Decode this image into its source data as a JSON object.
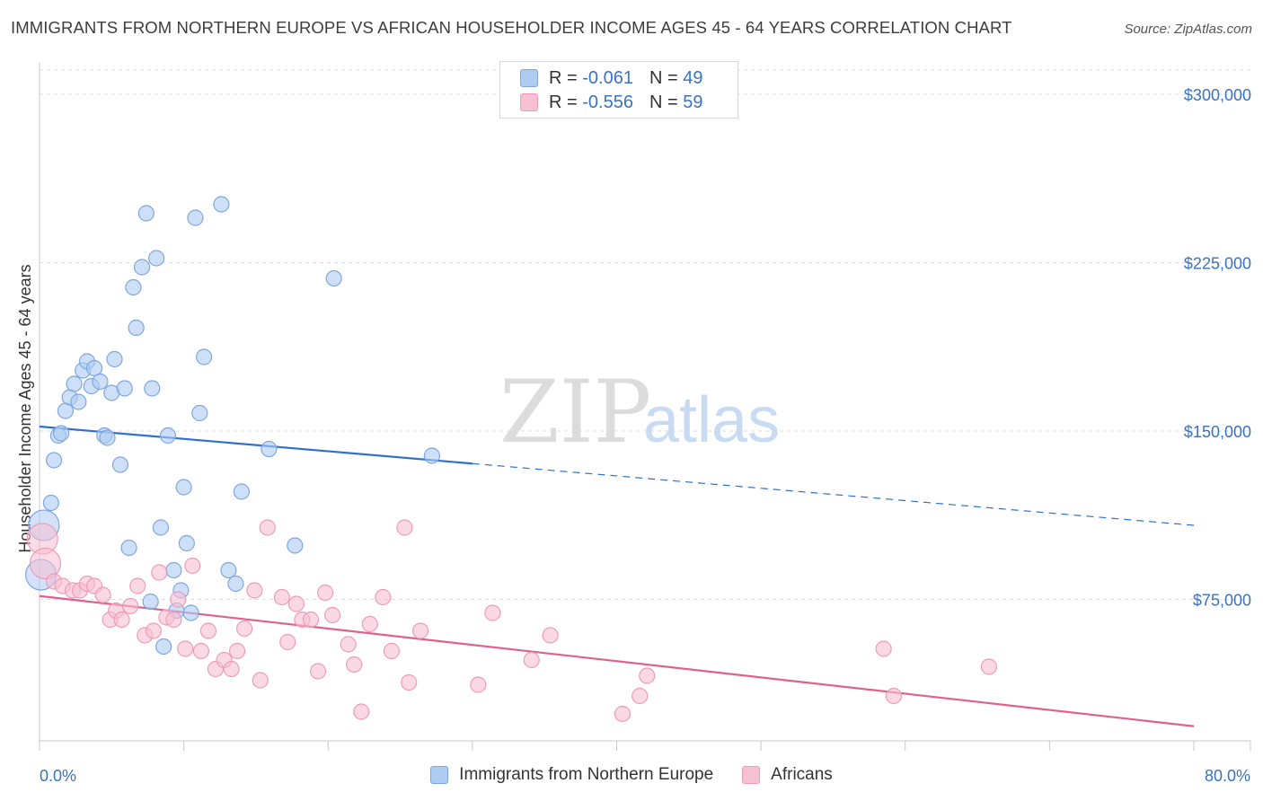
{
  "title": "IMMIGRANTS FROM NORTHERN EUROPE VS AFRICAN HOUSEHOLDER INCOME AGES 45 - 64 YEARS CORRELATION CHART",
  "source": "Source: ZipAtlas.com",
  "watermark": {
    "zip": "ZIP",
    "atlas": "atlas"
  },
  "legend": {
    "series1": {
      "r_label": "R =",
      "r_value": "-0.061",
      "n_label": "N =",
      "n_value": "49"
    },
    "series2": {
      "r_label": "R =",
      "r_value": "-0.556",
      "n_label": "N =",
      "n_value": "59"
    }
  },
  "colors": {
    "blue_fill": "#aecbf2",
    "blue_stroke": "#7ea6df",
    "blue_line": "#2f6fd0",
    "pink_fill": "#f7bfd2",
    "pink_stroke": "#ef9bb8",
    "pink_line": "#e0608e",
    "axis_text": "#3a72c4",
    "grid": "#dedede"
  },
  "chart_data": {
    "type": "scatter",
    "title": "IMMIGRANTS FROM NORTHERN EUROPE VS AFRICAN HOUSEHOLDER INCOME AGES 45 - 64 YEARS CORRELATION CHART",
    "xlabel": "",
    "ylabel": "Householder Income Ages 45 - 64 years",
    "xlim": [
      0,
      80
    ],
    "ylim": [
      12000,
      314000
    ],
    "x_tick_labels": [
      "0.0%",
      "80.0%"
    ],
    "y_ticks": [
      75000,
      150000,
      225000,
      300000
    ],
    "y_tick_labels": [
      "$75,000",
      "$150,000",
      "$225,000",
      "$300,000"
    ],
    "legend_position": "bottom-center",
    "series": [
      {
        "name": "Immigrants from Northern Europe",
        "color": "#aecbf2",
        "trend": {
          "x": [
            0,
            30
          ],
          "y": [
            152000,
            135500
          ],
          "dashed_to_x": 80,
          "dashed_to_y": 108000
        },
        "points": [
          {
            "x": 0.1,
            "y": 86000,
            "big": true
          },
          {
            "x": 0.3,
            "y": 108000,
            "big": true
          },
          {
            "x": 0.8,
            "y": 118000
          },
          {
            "x": 1.0,
            "y": 137000
          },
          {
            "x": 1.3,
            "y": 148000
          },
          {
            "x": 1.5,
            "y": 149000
          },
          {
            "x": 1.8,
            "y": 159000
          },
          {
            "x": 2.1,
            "y": 165000
          },
          {
            "x": 2.4,
            "y": 171000
          },
          {
            "x": 2.7,
            "y": 163000
          },
          {
            "x": 3.0,
            "y": 177000
          },
          {
            "x": 3.3,
            "y": 181000
          },
          {
            "x": 3.6,
            "y": 170000
          },
          {
            "x": 3.8,
            "y": 178000
          },
          {
            "x": 4.2,
            "y": 172000
          },
          {
            "x": 4.5,
            "y": 148000
          },
          {
            "x": 4.7,
            "y": 147000
          },
          {
            "x": 5.0,
            "y": 167000
          },
          {
            "x": 5.2,
            "y": 182000
          },
          {
            "x": 5.6,
            "y": 135000
          },
          {
            "x": 5.9,
            "y": 169000
          },
          {
            "x": 6.2,
            "y": 98000
          },
          {
            "x": 6.5,
            "y": 214000
          },
          {
            "x": 6.7,
            "y": 196000
          },
          {
            "x": 7.1,
            "y": 223000
          },
          {
            "x": 7.4,
            "y": 247000
          },
          {
            "x": 7.7,
            "y": 74000
          },
          {
            "x": 7.8,
            "y": 169000
          },
          {
            "x": 8.1,
            "y": 227000
          },
          {
            "x": 8.4,
            "y": 107000
          },
          {
            "x": 8.6,
            "y": 54000
          },
          {
            "x": 8.9,
            "y": 148000
          },
          {
            "x": 9.3,
            "y": 88000
          },
          {
            "x": 9.5,
            "y": 70000
          },
          {
            "x": 9.8,
            "y": 79000
          },
          {
            "x": 10.0,
            "y": 125000
          },
          {
            "x": 10.2,
            "y": 100000
          },
          {
            "x": 10.5,
            "y": 69000
          },
          {
            "x": 10.8,
            "y": 245000
          },
          {
            "x": 11.1,
            "y": 158000
          },
          {
            "x": 11.4,
            "y": 183000
          },
          {
            "x": 12.6,
            "y": 251000
          },
          {
            "x": 13.1,
            "y": 88000
          },
          {
            "x": 13.6,
            "y": 82000
          },
          {
            "x": 14.0,
            "y": 123000
          },
          {
            "x": 15.9,
            "y": 142000
          },
          {
            "x": 17.7,
            "y": 99000
          },
          {
            "x": 20.4,
            "y": 218000
          },
          {
            "x": 27.2,
            "y": 139000
          }
        ]
      },
      {
        "name": "Africans",
        "color": "#f7bfd2",
        "trend": {
          "x": [
            0,
            80
          ],
          "y": [
            76500,
            18500
          ]
        },
        "points": [
          {
            "x": 0.2,
            "y": 102000,
            "big": true
          },
          {
            "x": 0.4,
            "y": 91000,
            "big": true
          },
          {
            "x": 1.0,
            "y": 83000
          },
          {
            "x": 1.6,
            "y": 81000
          },
          {
            "x": 2.3,
            "y": 79000
          },
          {
            "x": 2.8,
            "y": 79000
          },
          {
            "x": 3.3,
            "y": 82000
          },
          {
            "x": 3.8,
            "y": 81000
          },
          {
            "x": 4.4,
            "y": 77000
          },
          {
            "x": 4.9,
            "y": 66000
          },
          {
            "x": 5.3,
            "y": 70000
          },
          {
            "x": 5.7,
            "y": 66000
          },
          {
            "x": 6.3,
            "y": 72000
          },
          {
            "x": 6.8,
            "y": 81000
          },
          {
            "x": 7.3,
            "y": 59000
          },
          {
            "x": 7.9,
            "y": 61000
          },
          {
            "x": 8.3,
            "y": 87000
          },
          {
            "x": 8.8,
            "y": 67000
          },
          {
            "x": 9.3,
            "y": 66000
          },
          {
            "x": 9.6,
            "y": 75000
          },
          {
            "x": 10.1,
            "y": 53000
          },
          {
            "x": 10.6,
            "y": 90000
          },
          {
            "x": 11.2,
            "y": 52000
          },
          {
            "x": 11.7,
            "y": 61000
          },
          {
            "x": 12.2,
            "y": 44000
          },
          {
            "x": 12.8,
            "y": 48000
          },
          {
            "x": 13.3,
            "y": 44000
          },
          {
            "x": 13.7,
            "y": 52000
          },
          {
            "x": 14.2,
            "y": 62000
          },
          {
            "x": 14.9,
            "y": 79000
          },
          {
            "x": 15.3,
            "y": 39000
          },
          {
            "x": 15.8,
            "y": 107000
          },
          {
            "x": 16.8,
            "y": 76000
          },
          {
            "x": 17.2,
            "y": 56000
          },
          {
            "x": 17.8,
            "y": 73000
          },
          {
            "x": 18.2,
            "y": 66000
          },
          {
            "x": 18.8,
            "y": 66000
          },
          {
            "x": 19.3,
            "y": 43000
          },
          {
            "x": 19.8,
            "y": 78000
          },
          {
            "x": 20.3,
            "y": 68000
          },
          {
            "x": 21.4,
            "y": 55000
          },
          {
            "x": 21.8,
            "y": 46000
          },
          {
            "x": 22.3,
            "y": 25000
          },
          {
            "x": 22.9,
            "y": 64000
          },
          {
            "x": 23.8,
            "y": 76000
          },
          {
            "x": 24.4,
            "y": 52000
          },
          {
            "x": 25.3,
            "y": 107000
          },
          {
            "x": 25.6,
            "y": 38000
          },
          {
            "x": 26.4,
            "y": 61000
          },
          {
            "x": 30.4,
            "y": 37000
          },
          {
            "x": 31.4,
            "y": 69000
          },
          {
            "x": 34.1,
            "y": 48000
          },
          {
            "x": 35.4,
            "y": 59000
          },
          {
            "x": 40.4,
            "y": 24000
          },
          {
            "x": 41.6,
            "y": 32000
          },
          {
            "x": 42.1,
            "y": 41000
          },
          {
            "x": 58.5,
            "y": 53000
          },
          {
            "x": 59.2,
            "y": 32000
          },
          {
            "x": 65.8,
            "y": 45000
          }
        ]
      }
    ]
  }
}
